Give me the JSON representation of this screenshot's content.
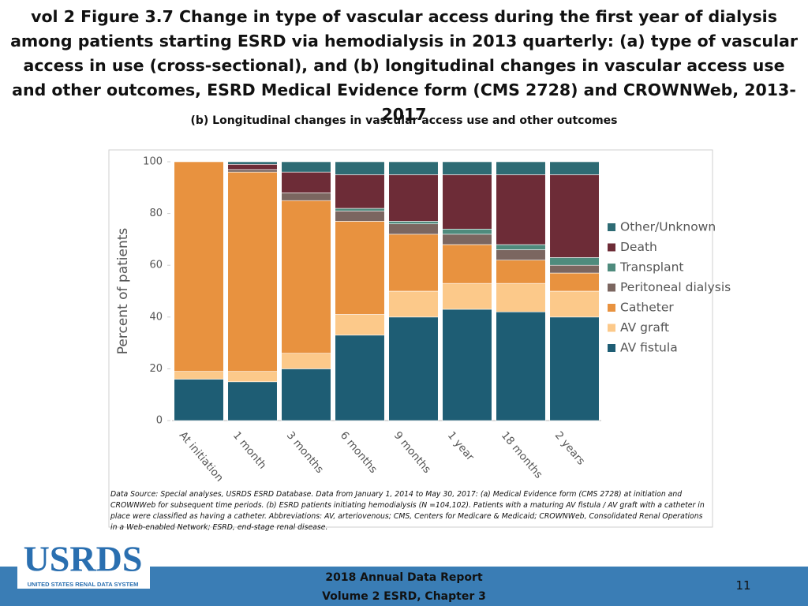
{
  "slide": {
    "title": "vol 2 Figure 3.7 Change in type of vascular access during the first year of dialysis among patients starting ESRD via hemodialysis in 2013 quarterly: (a) type of vascular access in use (cross-sectional), and (b) longitudinal changes in vascular access use and other outcomes, ESRD Medical Evidence form (CMS 2728) and CROWNWeb, 2013-2017",
    "footer_line1": "2018 Annual Data Report",
    "footer_line2": "Volume 2 ESRD, Chapter 3",
    "page_number": "11",
    "logo_text": "USRDS",
    "logo_subtext": "UNITED STATES RENAL DATA SYSTEM"
  },
  "chart_data": {
    "type": "stacked_bar",
    "title": "(b) Longitudinal changes in vascular access use and other outcomes",
    "y_label": "Percent of patients",
    "note": "Data Source: Special analyses, USRDS ESRD Database. Data from January 1, 2014 to May 30, 2017: (a) Medical Evidence form (CMS 2728) at initiation and CROWNWeb for subsequent time periods. (b) ESRD patients initiating hemodialysis (N =104,102). Patients with a maturing AV fistula / AV graft with a catheter in place were classified as having a catheter. Abbreviations: AV, arteriovenous; CMS, Centers for Medicare & Medicaid; CROWNWeb, Consolidated Renal Operations in a Web-enabled Network; ESRD, end-stage renal disease.",
    "categories": [
      "At initiation",
      "1 month",
      "3 months",
      "6 months",
      "9 months",
      "1 year",
      "18 months",
      "2 years"
    ],
    "series": [
      {
        "name": "AV fistula",
        "color": "#1e5d74",
        "values": [
          16,
          15,
          20,
          33,
          40,
          43,
          42,
          40
        ]
      },
      {
        "name": "AV graft",
        "color": "#fcc98a",
        "values": [
          3,
          4,
          6,
          8,
          10,
          10,
          11,
          10
        ]
      },
      {
        "name": "Catheter",
        "color": "#e8923f",
        "values": [
          81,
          77,
          59,
          36,
          22,
          15,
          9,
          7
        ]
      },
      {
        "name": "Peritoneal dialysis",
        "color": "#7b6660",
        "values": [
          0,
          1,
          3,
          4,
          4,
          4,
          4,
          3
        ]
      },
      {
        "name": "Transplant",
        "color": "#4f8b7d",
        "values": [
          0,
          0,
          0,
          1,
          1,
          2,
          2,
          3
        ]
      },
      {
        "name": "Death",
        "color": "#6d2c37",
        "values": [
          0,
          2,
          8,
          13,
          18,
          21,
          27,
          32
        ]
      },
      {
        "name": "Other/Unknown",
        "color": "#2e6b74",
        "values": [
          0,
          1,
          4,
          5,
          5,
          5,
          5,
          5
        ]
      }
    ],
    "ylim": [
      0,
      100
    ],
    "yticks": [
      0,
      20,
      40,
      60,
      80,
      100
    ],
    "grid": false,
    "legend": "right"
  }
}
